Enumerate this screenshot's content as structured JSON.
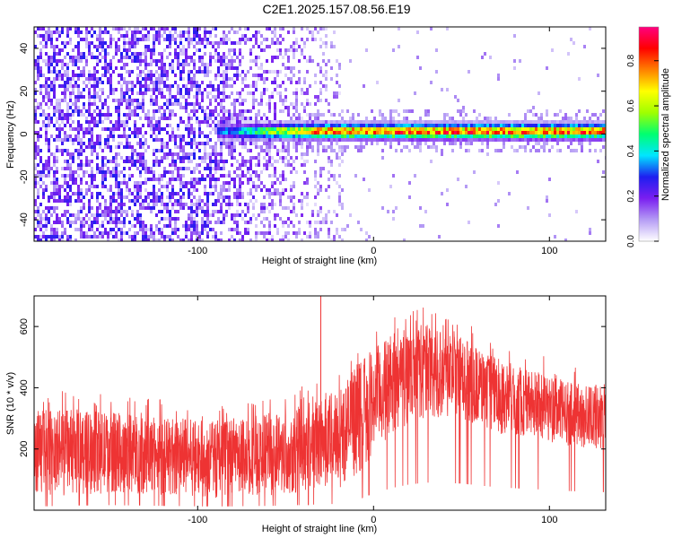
{
  "title": "C2E1.2025.157.08.56.E19",
  "chart_data": [
    {
      "type": "heatmap",
      "xlabel": "Height of straight line (km)",
      "ylabel": "Frequency (Hz)",
      "xlim": [
        -193,
        132
      ],
      "ylim": [
        -50,
        50
      ],
      "xticks": [
        -100,
        0,
        100
      ],
      "xtick_labels": [
        "-100",
        "0",
        "100"
      ],
      "yticks": [
        -40,
        -20,
        0,
        20,
        40
      ],
      "ytick_labels": [
        "-40",
        "-20",
        "0",
        "20",
        "40"
      ],
      "colorbar": {
        "label": "Normalized spectral amplitude",
        "range": [
          0.0,
          0.95
        ],
        "ticks": [
          0.0,
          0.2,
          0.4,
          0.6,
          0.8
        ],
        "tick_labels": [
          "0.0",
          "0.2",
          "0.4",
          "0.6",
          "0.8"
        ],
        "colormap": [
          "#ffffff",
          "#b59cf5",
          "#7a1ef0",
          "#1e1ef0",
          "#00e6ff",
          "#00ff70",
          "#a0ff00",
          "#ffff00",
          "#ff8000",
          "#ff0000",
          "#ff0080"
        ]
      },
      "signal_band": {
        "x_start": -90,
        "x_end": 132,
        "freq_center": 2,
        "freq_halfwidth": 3,
        "peak_amplitude": 0.9
      },
      "noise_region": {
        "x_start": -193,
        "x_end": -18,
        "typical_amplitude": 0.15
      }
    },
    {
      "type": "line",
      "xlabel": "Height of straight line (km)",
      "ylabel": "SNR (10 * v/v)",
      "xlim": [
        -193,
        132
      ],
      "ylim": [
        0,
        700
      ],
      "xticks": [
        -100,
        0,
        100
      ],
      "xtick_labels": [
        "-100",
        "0",
        "100"
      ],
      "yticks": [
        200,
        400,
        600
      ],
      "ytick_labels": [
        "200",
        "400",
        "600"
      ],
      "color": "#ee3333",
      "envelope": {
        "x": [
          -193,
          -170,
          -150,
          -130,
          -110,
          -90,
          -70,
          -50,
          -35,
          -20,
          -10,
          0,
          10,
          20,
          30,
          40,
          50,
          60,
          70,
          80,
          90,
          100,
          110,
          120,
          132
        ],
        "low": [
          40,
          50,
          55,
          50,
          45,
          40,
          45,
          50,
          60,
          70,
          110,
          180,
          240,
          280,
          300,
          300,
          290,
          270,
          250,
          240,
          230,
          220,
          210,
          200,
          200
        ],
        "high": [
          330,
          330,
          320,
          310,
          300,
          290,
          310,
          330,
          360,
          400,
          470,
          530,
          570,
          600,
          610,
          600,
          570,
          530,
          500,
          480,
          460,
          440,
          420,
          410,
          410
        ]
      },
      "spike": {
        "x": -30,
        "y": 700
      }
    }
  ]
}
